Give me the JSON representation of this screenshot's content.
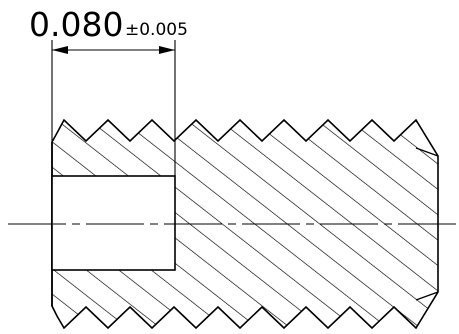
{
  "dimension": {
    "value": "0.080",
    "tolerance": "±0.005"
  },
  "colors": {
    "line": "#000000",
    "background": "#ffffff"
  }
}
